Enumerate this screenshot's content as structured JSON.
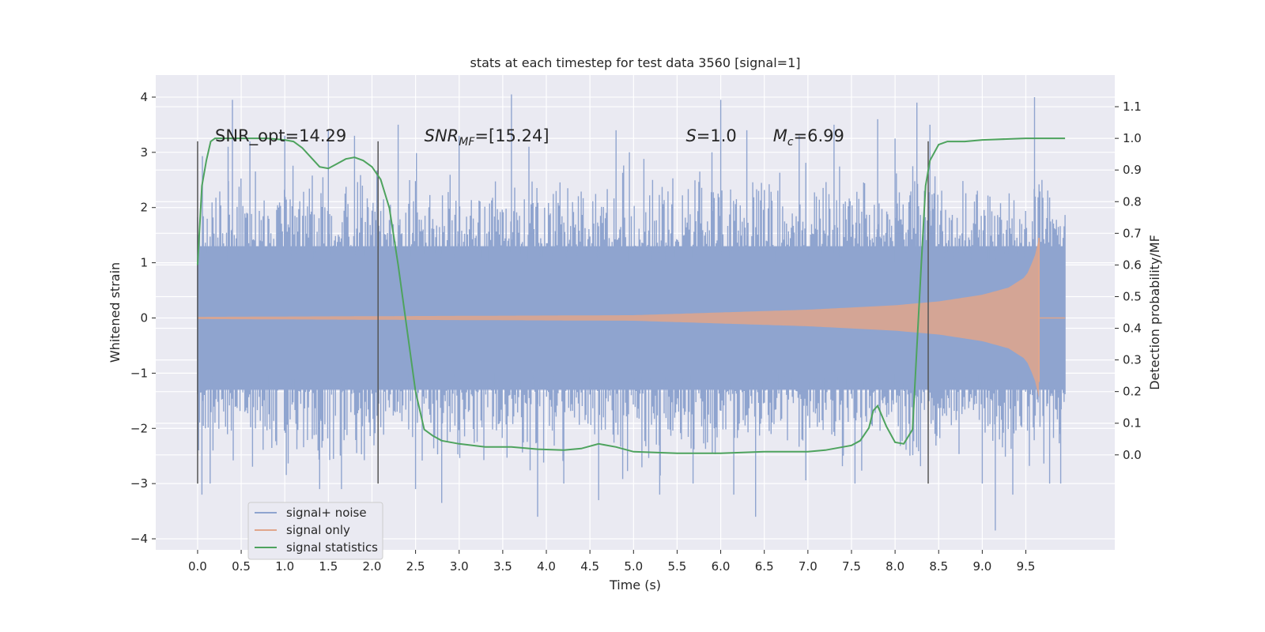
{
  "chart_data": {
    "type": "line",
    "title": "stats at each timestep for test data 3560 [signal=1]",
    "xlabel": "Time (s)",
    "ylabel": "Whitened strain",
    "y2label": "Detection probability/MF",
    "xlim": [
      -0.48,
      10.52
    ],
    "ylim": [
      -4.2,
      4.4
    ],
    "y2lim": [
      -0.3,
      1.2
    ],
    "x_ticks": [
      0.0,
      0.5,
      1.0,
      1.5,
      2.0,
      2.5,
      3.0,
      3.5,
      4.0,
      4.5,
      5.0,
      5.5,
      6.0,
      6.5,
      7.0,
      7.5,
      8.0,
      8.5,
      9.0,
      9.5
    ],
    "y_ticks": [
      -4,
      -3,
      -2,
      -1,
      0,
      1,
      2,
      3,
      4
    ],
    "y2_ticks": [
      0.0,
      0.1,
      0.2,
      0.3,
      0.4,
      0.5,
      0.6,
      0.7,
      0.8,
      0.9,
      1.0,
      1.1
    ],
    "grid": true,
    "legend_position": "lower-left",
    "series": [
      {
        "name": "signal+ noise",
        "color": "#8fa4cf",
        "axis": "left",
        "x_range": [
          0.0,
          9.95
        ],
        "band_amplitude": 1.3,
        "spikes": [
          [
            0.05,
            -3.2
          ],
          [
            0.35,
            3.1
          ],
          [
            0.4,
            3.95
          ],
          [
            0.6,
            3.2
          ],
          [
            1.0,
            3.3
          ],
          [
            1.4,
            -3.1
          ],
          [
            1.5,
            3.4
          ],
          [
            1.65,
            -3.1
          ],
          [
            1.8,
            3.3
          ],
          [
            2.3,
            3.5
          ],
          [
            2.5,
            -3.1
          ],
          [
            2.8,
            -3.35
          ],
          [
            3.0,
            3.3
          ],
          [
            3.6,
            4.05
          ],
          [
            3.8,
            3.1
          ],
          [
            3.9,
            -3.6
          ],
          [
            4.2,
            -3.0
          ],
          [
            4.6,
            -3.3
          ],
          [
            4.8,
            3.4
          ],
          [
            5.3,
            -3.2
          ],
          [
            5.9,
            3.0
          ],
          [
            6.0,
            3.95
          ],
          [
            6.15,
            -3.2
          ],
          [
            6.3,
            3.4
          ],
          [
            6.4,
            -3.6
          ],
          [
            6.9,
            3.3
          ],
          [
            7.3,
            3.5
          ],
          [
            7.8,
            3.6
          ],
          [
            8.0,
            3.25
          ],
          [
            8.25,
            3.9
          ],
          [
            8.4,
            3.5
          ],
          [
            9.0,
            -3.0
          ],
          [
            9.15,
            -3.85
          ],
          [
            9.35,
            -3.2
          ],
          [
            9.6,
            4.0
          ],
          [
            9.9,
            -3.0
          ]
        ]
      },
      {
        "name": "signal only",
        "color": "#e0a68b",
        "axis": "left",
        "x_start": 0.0,
        "x_end": 9.65,
        "envelope": [
          [
            0.0,
            0.02
          ],
          [
            5.0,
            0.05
          ],
          [
            6.0,
            0.1
          ],
          [
            7.0,
            0.15
          ],
          [
            8.0,
            0.23
          ],
          [
            8.5,
            0.3
          ],
          [
            9.0,
            0.42
          ],
          [
            9.3,
            0.55
          ],
          [
            9.5,
            0.75
          ],
          [
            9.6,
            1.1
          ],
          [
            9.65,
            1.45
          ]
        ]
      },
      {
        "name": "signal statistics",
        "color": "#4ea35e",
        "axis": "right",
        "x": [
          0.0,
          0.05,
          0.1,
          0.15,
          0.2,
          0.3,
          0.5,
          0.8,
          1.0,
          1.1,
          1.2,
          1.3,
          1.4,
          1.5,
          1.6,
          1.7,
          1.8,
          1.9,
          2.0,
          2.1,
          2.2,
          2.3,
          2.4,
          2.5,
          2.6,
          2.7,
          2.8,
          3.0,
          3.3,
          3.6,
          3.9,
          4.2,
          4.4,
          4.6,
          4.8,
          5.0,
          5.5,
          6.0,
          6.5,
          7.0,
          7.2,
          7.4,
          7.5,
          7.6,
          7.7,
          7.75,
          7.8,
          7.9,
          8.0,
          8.1,
          8.2,
          8.3,
          8.35,
          8.4,
          8.5,
          8.6,
          8.8,
          9.0,
          9.5,
          9.95
        ],
        "values": [
          0.6,
          0.85,
          0.93,
          0.99,
          1.0,
          1.0,
          1.0,
          1.0,
          0.995,
          0.99,
          0.97,
          0.94,
          0.91,
          0.905,
          0.92,
          0.935,
          0.94,
          0.93,
          0.91,
          0.87,
          0.78,
          0.6,
          0.4,
          0.2,
          0.08,
          0.06,
          0.045,
          0.035,
          0.025,
          0.025,
          0.018,
          0.015,
          0.02,
          0.035,
          0.025,
          0.01,
          0.005,
          0.005,
          0.01,
          0.01,
          0.015,
          0.025,
          0.03,
          0.045,
          0.085,
          0.14,
          0.155,
          0.09,
          0.04,
          0.035,
          0.08,
          0.6,
          0.85,
          0.93,
          0.98,
          0.99,
          0.99,
          0.995,
          1.0,
          1.0
        ]
      }
    ],
    "vertical_markers": [
      {
        "x": 0.0,
        "ymin": -3.0,
        "ymax": 3.2
      },
      {
        "x": 2.07,
        "ymin": -3.0,
        "ymax": 3.2
      },
      {
        "x": 8.38,
        "ymin": -3.0,
        "ymax": 3.2
      }
    ],
    "annotations": [
      {
        "x": 0.2,
        "y": 3.2,
        "parts": [
          [
            "t",
            "SNR_opt=14.29"
          ]
        ]
      },
      {
        "x": 2.6,
        "y": 3.2,
        "parts": [
          [
            "i",
            "SNR"
          ],
          [
            "sub",
            "MF"
          ],
          [
            "t",
            "=[15.24]"
          ]
        ]
      },
      {
        "x": 5.6,
        "y": 3.2,
        "parts": [
          [
            "i",
            "S"
          ],
          [
            "t",
            "=1.0"
          ]
        ]
      },
      {
        "x": 6.6,
        "y": 3.2,
        "parts": [
          [
            "i",
            "M"
          ],
          [
            "sub",
            "c"
          ],
          [
            "t",
            "=6.99"
          ]
        ]
      }
    ]
  }
}
